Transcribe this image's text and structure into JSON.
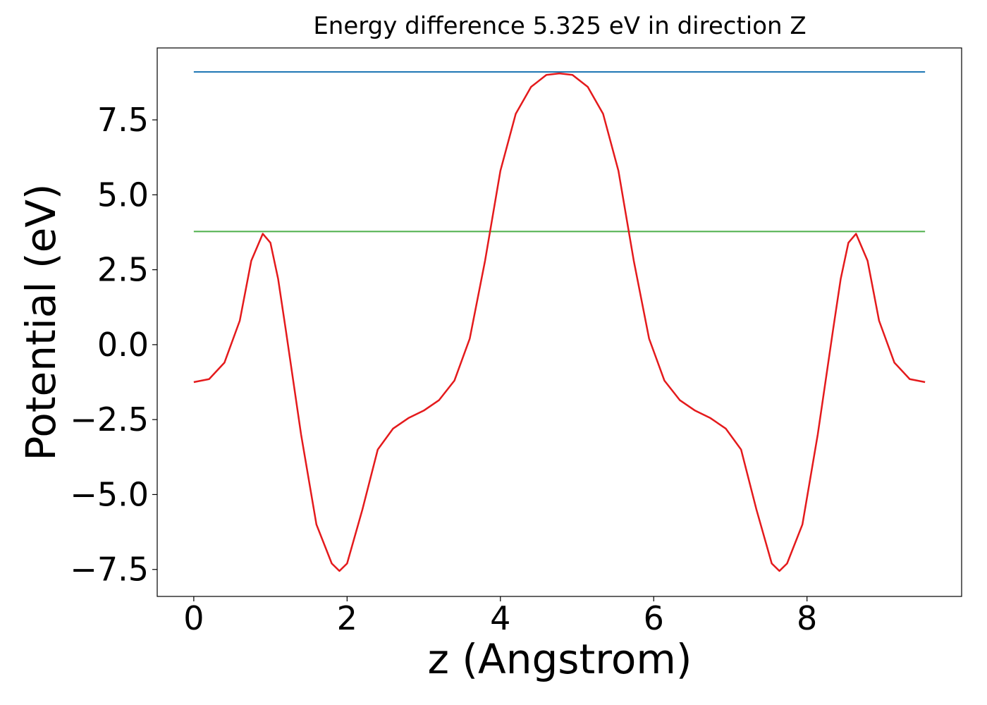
{
  "chart_data": {
    "type": "line",
    "title": "Energy difference 5.325 eV in direction Z",
    "x_label": "z (Angstrom)",
    "y_label": "Potential (eV)",
    "xlim": [
      -0.477,
      10.017
    ],
    "ylim": [
      -8.4,
      9.9
    ],
    "xticks": [
      0,
      2,
      4,
      6,
      8
    ],
    "yticks": [
      {
        "value": -7.5,
        "label": "−7.5"
      },
      {
        "value": -5,
        "label": "−5.0"
      },
      {
        "value": -2.5,
        "label": "−2.5"
      },
      {
        "value": 0,
        "label": "0.0"
      },
      2.5,
      {
        "value": 5,
        "label": "5.0"
      },
      7.5
    ],
    "x": [
      0,
      0.2,
      0.4,
      0.6,
      0.75,
      0.9,
      1.0,
      1.1,
      1.2,
      1.4,
      1.6,
      1.8,
      1.9,
      2.0,
      2.2,
      2.4,
      2.6,
      2.8,
      3.0,
      3.2,
      3.4,
      3.6,
      3.8,
      4.0,
      4.2,
      4.4,
      4.6,
      4.77,
      4.94,
      5.14,
      5.34,
      5.54,
      5.74,
      5.94,
      6.14,
      6.34,
      6.54,
      6.74,
      6.94,
      7.14,
      7.34,
      7.54,
      7.64,
      7.74,
      7.94,
      8.14,
      8.34,
      8.44,
      8.54,
      8.64,
      8.79,
      8.94,
      9.14,
      9.34,
      9.54
    ],
    "series": [
      {
        "color": "#e41a1c",
        "values": [
          -1.25,
          -1.15,
          -0.6,
          0.8,
          2.8,
          3.7,
          3.4,
          2.2,
          0.5,
          -3.0,
          -6.0,
          -7.3,
          -7.55,
          -7.3,
          -5.5,
          -3.5,
          -2.8,
          -2.45,
          -2.2,
          -1.85,
          -1.2,
          0.2,
          2.8,
          5.8,
          7.7,
          8.6,
          9.0,
          9.05,
          9.0,
          8.6,
          7.7,
          5.8,
          2.8,
          0.2,
          -1.2,
          -1.85,
          -2.2,
          -2.45,
          -2.8,
          -3.5,
          -5.5,
          -7.3,
          -7.55,
          -7.3,
          -6.0,
          -3.0,
          0.5,
          2.2,
          3.4,
          3.7,
          2.8,
          0.8,
          -0.6,
          -1.15,
          -1.25
        ]
      }
    ],
    "hlines": [
      {
        "y": 9.1,
        "color": "#1f77b4"
      },
      {
        "y": 3.775,
        "color": "#4daf4a"
      }
    ]
  }
}
